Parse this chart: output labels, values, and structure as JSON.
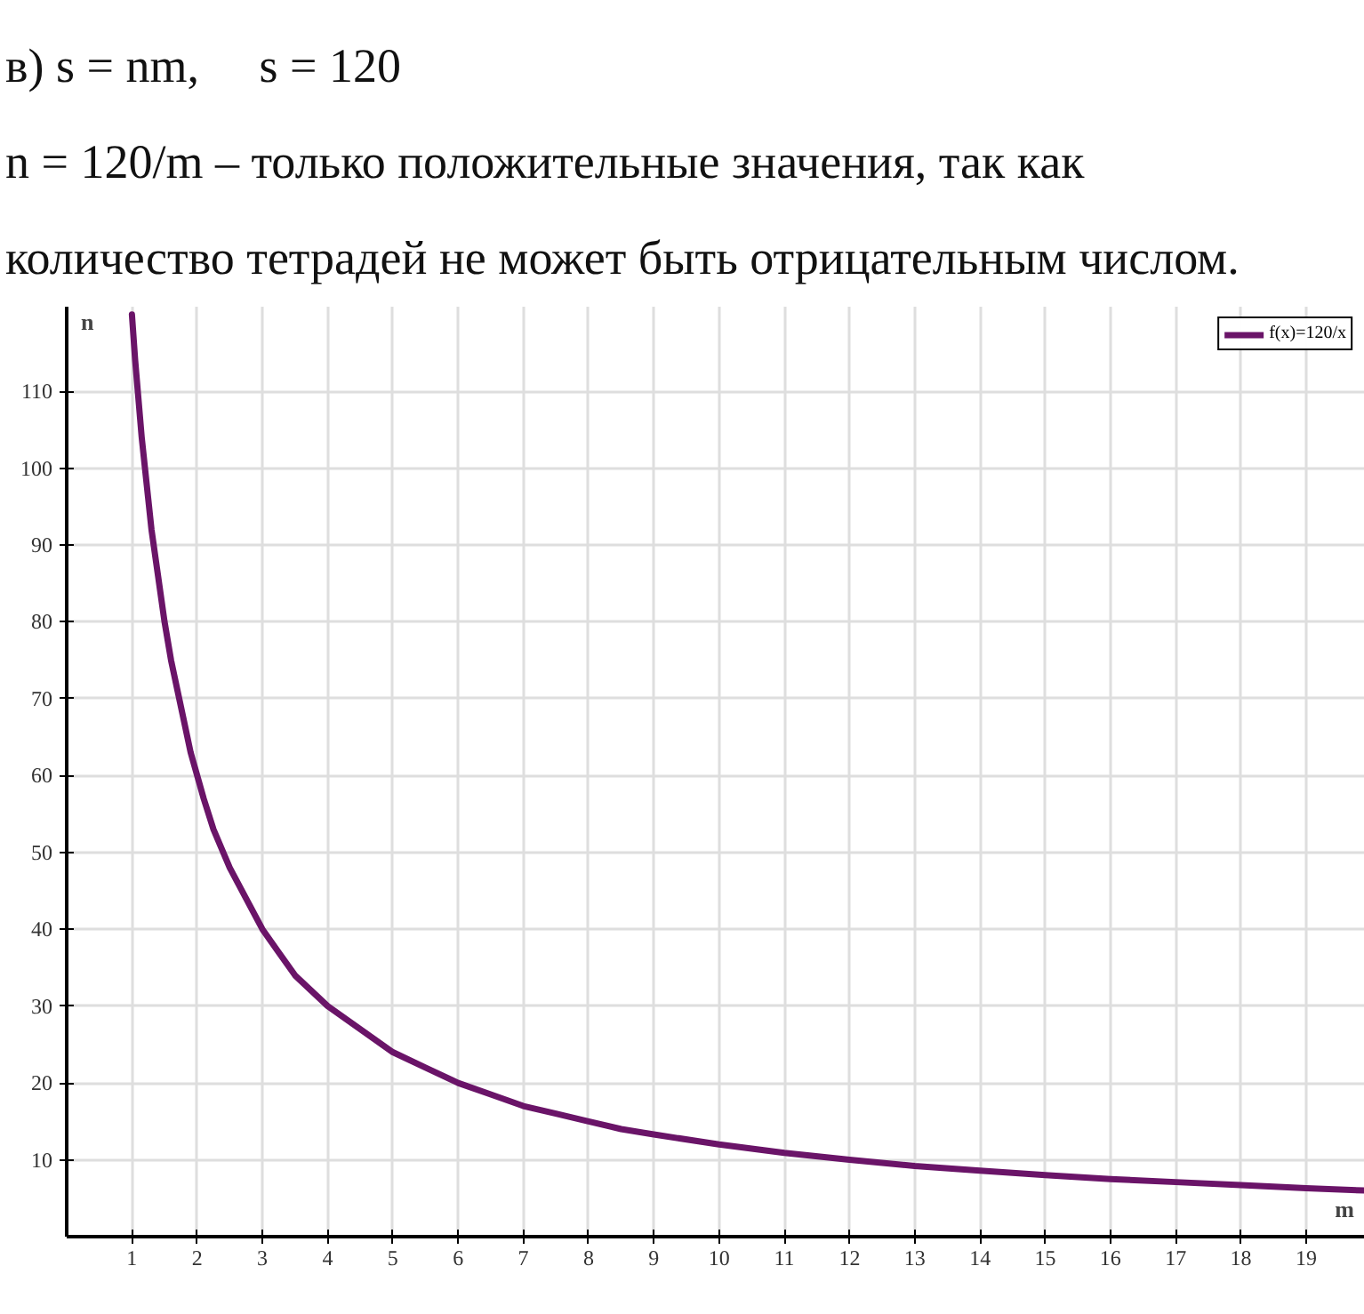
{
  "chart_data": {
    "type": "line",
    "annotations": [
      "в) s = nm,     s = 120",
      "n = 120/m – только положительные значения, так как количество тетрадей не может быть отрицательным числом."
    ],
    "xlabel": "m",
    "ylabel": "n",
    "x": [
      1,
      1.05,
      1.1,
      1.15,
      1.2,
      1.25,
      1.3,
      1.4,
      1.5,
      1.6,
      1.7,
      1.8,
      1.9,
      2,
      2.1,
      2.25,
      2.4,
      2.5,
      2.75,
      3,
      3.25,
      3.5,
      3.75,
      4,
      4.5,
      5,
      5.5,
      6,
      6.5,
      7,
      7.5,
      8,
      8.5,
      9,
      10,
      11,
      12,
      13,
      14,
      15,
      16,
      17,
      18,
      19,
      19.9
    ],
    "series": [
      {
        "name": "f(x)=120/x",
        "color": "#6a1468",
        "values": [
          120,
          114,
          109,
          104,
          100,
          96,
          92,
          86,
          80,
          75,
          71,
          67,
          63,
          60,
          57,
          53,
          50,
          48,
          44,
          40,
          37,
          34,
          32,
          30,
          27,
          24,
          22,
          20,
          18.5,
          17,
          16,
          15,
          14,
          13.3,
          12,
          10.9,
          10,
          9.2,
          8.6,
          8,
          7.5,
          7.1,
          6.7,
          6.3,
          6
        ]
      }
    ],
    "xlim": [
      0,
      19.9
    ],
    "ylim": [
      0,
      121
    ],
    "xticks": [
      1,
      2,
      3,
      4,
      5,
      6,
      7,
      8,
      9,
      10,
      11,
      12,
      13,
      14,
      15,
      16,
      17,
      18,
      19
    ],
    "yticks": [
      10,
      20,
      30,
      40,
      50,
      60,
      70,
      80,
      90,
      100,
      110
    ],
    "grid": true,
    "legend": "top right"
  }
}
